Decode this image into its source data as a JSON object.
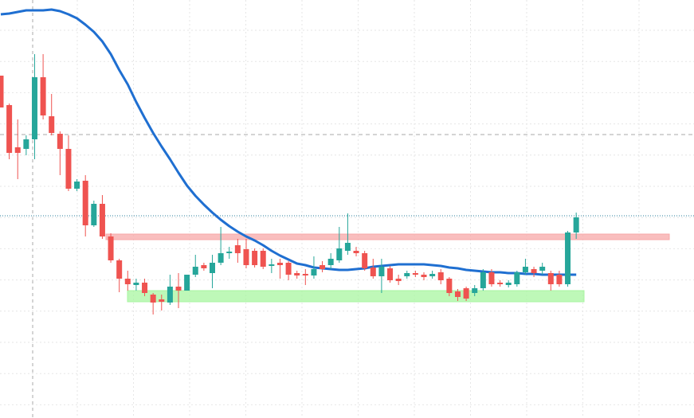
{
  "chart_data": {
    "type": "candlestick",
    "ylim": [
      0,
      525
    ],
    "grid": true,
    "up_color": "#26a69a",
    "down_color": "#ef5350",
    "open": [
      430,
      393,
      340,
      338,
      350,
      428,
      379,
      357,
      338,
      288,
      298,
      242,
      269,
      228,
      198,
      175,
      167,
      170,
      155,
      149,
      145,
      165,
      160,
      180,
      192,
      182,
      195,
      207,
      217,
      212,
      210,
      210,
      191,
      195,
      195,
      182,
      181,
      179,
      192,
      192,
      198,
      210,
      210,
      207,
      189,
      178,
      188,
      175,
      178,
      182,
      180,
      178,
      183,
      175,
      159,
      163,
      157,
      163,
      183,
      170,
      167,
      168,
      183,
      187,
      185,
      182,
      180,
      168,
      233
    ],
    "high": [
      430,
      395,
      375,
      355,
      457,
      457,
      407,
      360,
      355,
      300,
      305,
      273,
      280,
      232,
      200,
      185,
      175,
      175,
      157,
      155,
      180,
      182,
      180,
      205,
      195,
      205,
      240,
      215,
      225,
      225,
      213,
      213,
      200,
      200,
      197,
      185,
      187,
      203,
      197,
      207,
      240,
      257,
      215,
      210,
      200,
      200,
      191,
      180,
      185,
      185,
      183,
      185,
      187,
      177,
      162,
      165,
      167,
      187,
      187,
      173,
      173,
      185,
      200,
      190,
      195,
      185,
      185,
      235,
      258
    ],
    "low": [
      390,
      325,
      300,
      330,
      325,
      375,
      355,
      305,
      285,
      285,
      228,
      240,
      225,
      195,
      158,
      160,
      160,
      153,
      130,
      135,
      142,
      138,
      160,
      177,
      185,
      163,
      192,
      200,
      195,
      188,
      189,
      187,
      182,
      175,
      173,
      175,
      167,
      175,
      183,
      187,
      195,
      205,
      203,
      185,
      175,
      157,
      170,
      167,
      175,
      177,
      173,
      175,
      168,
      153,
      147,
      147,
      153,
      160,
      165,
      165,
      164,
      165,
      180,
      177,
      180,
      160,
      165,
      165,
      225
    ],
    "close": [
      390,
      333,
      333,
      350,
      428,
      380,
      358,
      338,
      288,
      297,
      242,
      269,
      228,
      198,
      175,
      168,
      170,
      157,
      145,
      146,
      165,
      160,
      180,
      190,
      188,
      195,
      207,
      209,
      207,
      192,
      192,
      190,
      193,
      192,
      180,
      179,
      179,
      187,
      187,
      200,
      213,
      220,
      207,
      188,
      178,
      190,
      173,
      172,
      182,
      180,
      177,
      181,
      173,
      157,
      152,
      150,
      163,
      183,
      168,
      168,
      170,
      183,
      190,
      182,
      190,
      168,
      168,
      233,
      252
    ],
    "overlay": {
      "color": "#1f6fd1",
      "values": [
        507,
        508,
        510,
        512,
        512,
        512,
        513,
        511,
        507,
        502,
        494,
        485,
        473,
        457,
        437,
        419,
        397,
        377,
        358,
        341,
        325,
        308,
        292,
        279,
        268,
        258,
        249,
        241,
        234,
        228,
        223,
        217,
        210,
        204,
        199,
        194,
        192,
        189,
        188,
        187,
        186,
        186,
        187,
        188,
        190,
        191,
        192,
        193,
        193,
        193,
        193,
        192,
        191,
        189,
        188,
        186,
        185,
        184,
        183,
        183,
        182,
        182,
        181,
        181,
        180,
        180,
        180,
        180,
        180
      ]
    },
    "zones": [
      {
        "low": 224,
        "high": 231,
        "color": "#f7a8a8"
      },
      {
        "low": 146,
        "high": 160,
        "color": "#a8f5a0"
      }
    ],
    "hlines": [
      {
        "value": 356,
        "color": "#aaaaaa",
        "style": "dashed"
      },
      {
        "value": 254,
        "color": "#2a7f9e",
        "style": "dotted"
      }
    ]
  }
}
